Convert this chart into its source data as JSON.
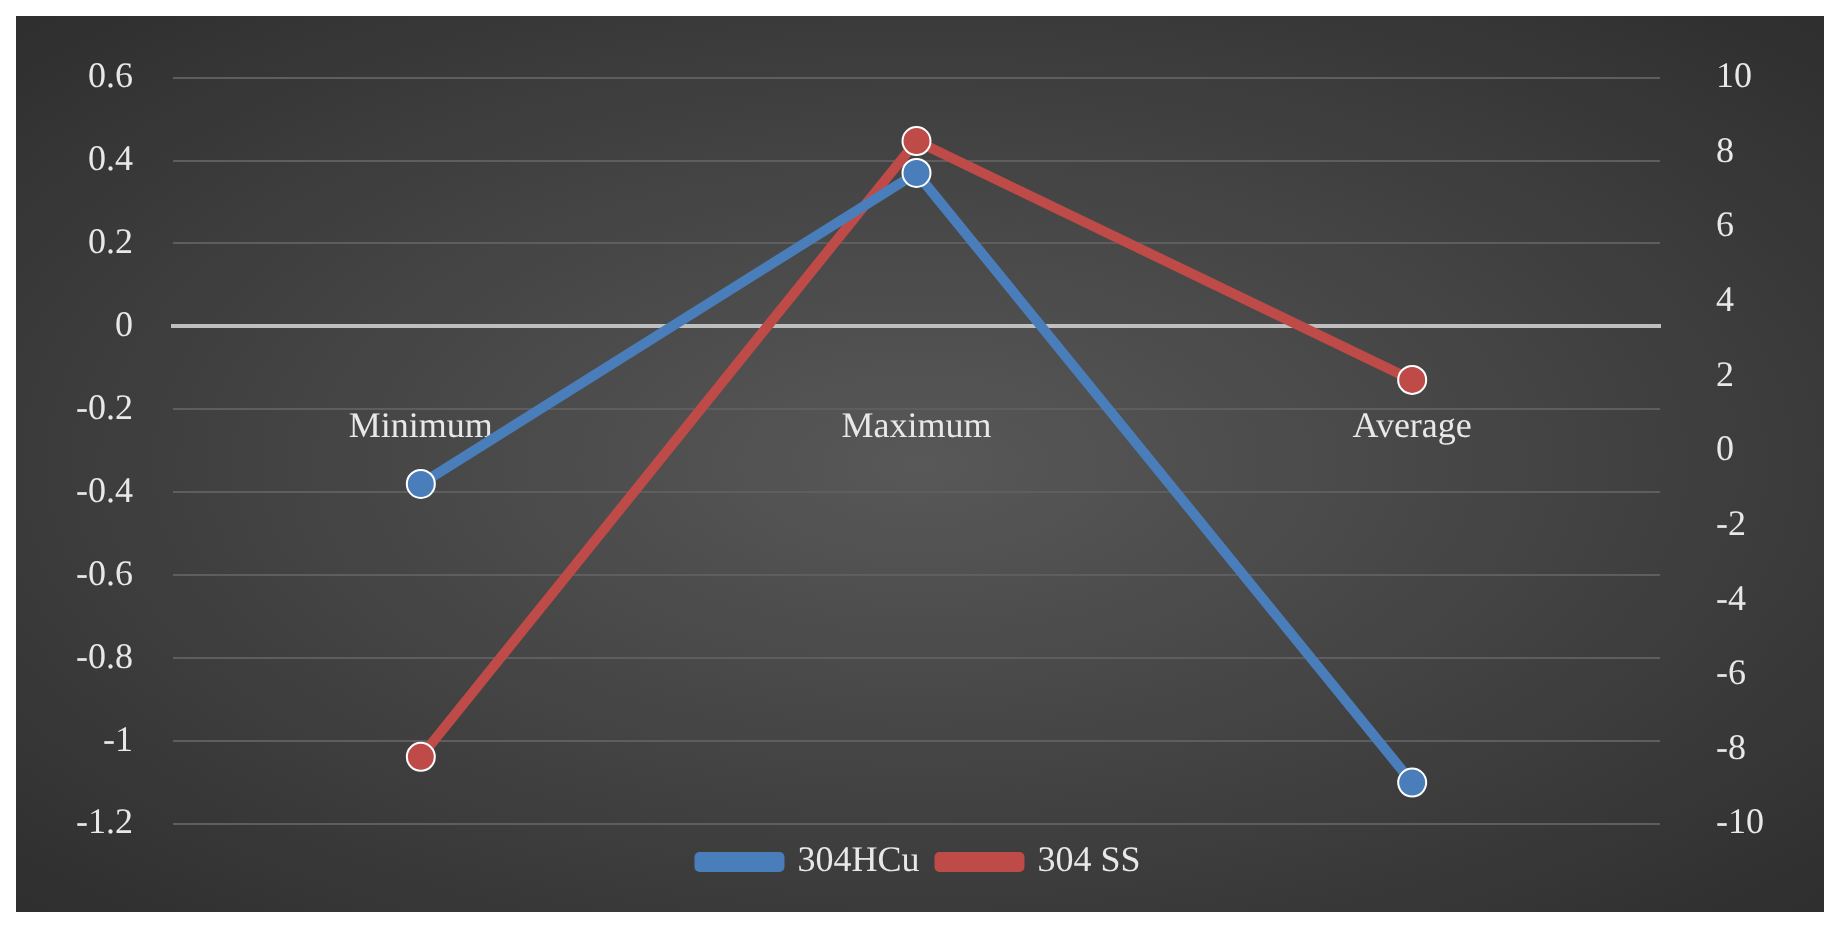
{
  "chart_data": {
    "type": "line",
    "categories": [
      "Minimum",
      "Maximum",
      "Average"
    ],
    "series": [
      {
        "name": "304HCu",
        "color": "#4a7ebb",
        "values": [
          -0.38,
          0.37,
          -1.1
        ]
      },
      {
        "name": "304 SS",
        "color": "#be4b48",
        "values": [
          -8.2,
          8.3,
          1.9
        ],
        "axis": "y2"
      }
    ],
    "ylim": [
      -1.2,
      0.6
    ],
    "yticks": [
      -1.2,
      -1,
      -0.8,
      -0.6,
      -0.4,
      -0.2,
      0,
      0.2,
      0.4,
      0.6
    ],
    "y2lim": [
      -10,
      10
    ],
    "y2ticks": [
      -10,
      -8,
      -6,
      -4,
      -2,
      0,
      2,
      4,
      6,
      8,
      10
    ],
    "grid": "y",
    "legend": "bottom",
    "marker": "circle",
    "line_style": "solid"
  }
}
